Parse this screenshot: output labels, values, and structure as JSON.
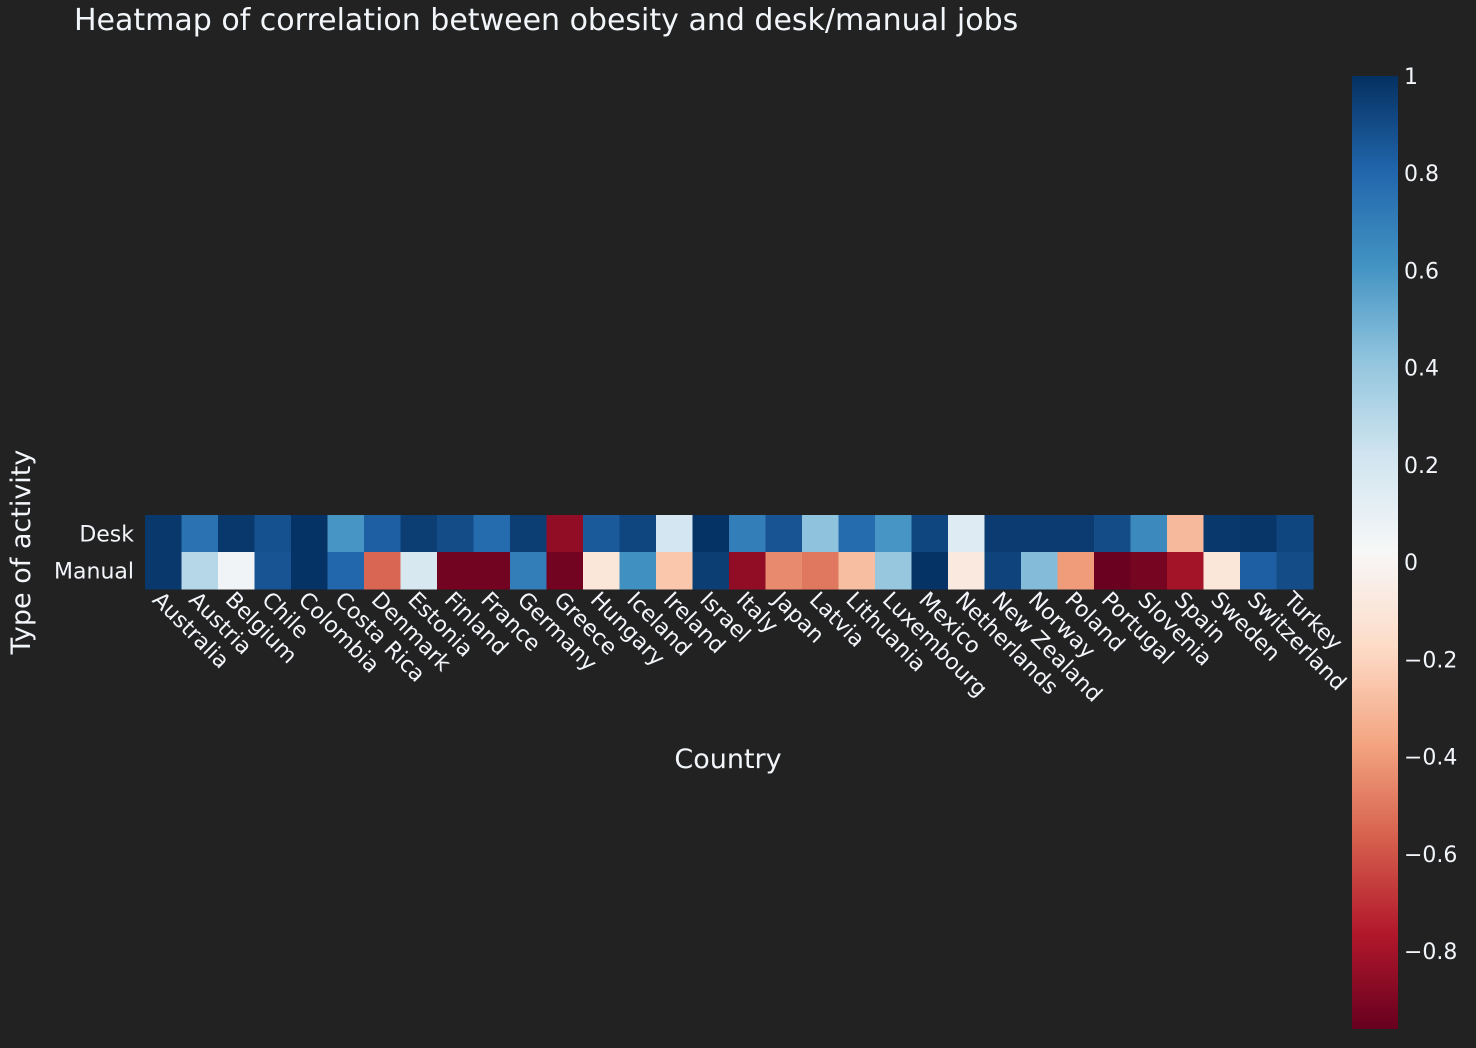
{
  "chart_data": {
    "type": "heatmap",
    "title": "Heatmap of correlation between obesity and desk/manual jobs",
    "xlabel": "Country",
    "ylabel": "Type of activity",
    "x": [
      "Australia",
      "Austria",
      "Belgium",
      "Chile",
      "Colombia",
      "Costa Rica",
      "Denmark",
      "Estonia",
      "Finland",
      "France",
      "Germany",
      "Greece",
      "Hungary",
      "Iceland",
      "Ireland",
      "Israel",
      "Italy",
      "Japan",
      "Latvia",
      "Lithuania",
      "Luxembourg",
      "Mexico",
      "Netherlands",
      "New Zealand",
      "Norway",
      "Poland",
      "Portugal",
      "Slovenia",
      "Spain",
      "Sweden",
      "Switzerland",
      "Turkey"
    ],
    "y": [
      "Desk",
      "Manual"
    ],
    "z": [
      [
        0.97,
        0.75,
        0.97,
        0.88,
        0.99,
        0.6,
        0.83,
        0.95,
        0.9,
        0.78,
        0.95,
        -0.85,
        0.85,
        0.92,
        0.2,
        0.99,
        0.7,
        0.87,
        0.42,
        0.78,
        0.6,
        0.92,
        0.15,
        0.96,
        0.96,
        0.96,
        0.9,
        0.65,
        -0.3,
        0.97,
        0.98,
        0.92
      ],
      [
        0.97,
        0.3,
        0.05,
        0.87,
        0.99,
        0.8,
        -0.55,
        0.18,
        -0.93,
        -0.93,
        0.7,
        -0.93,
        -0.1,
        0.62,
        -0.25,
        0.95,
        -0.85,
        -0.45,
        -0.5,
        -0.28,
        0.4,
        0.99,
        -0.08,
        0.93,
        0.45,
        -0.4,
        -0.95,
        -0.92,
        -0.8,
        -0.1,
        0.83,
        0.9
      ]
    ],
    "zmin": -0.96,
    "zmax": 1,
    "colorbar_ticks": [
      "1",
      "0.8",
      "0.6",
      "0.4",
      "0.2",
      "0",
      "−0.2",
      "−0.4",
      "−0.6",
      "−0.8"
    ],
    "colorbar_tick_values": [
      1,
      0.8,
      0.6,
      0.4,
      0.2,
      0,
      -0.2,
      -0.4,
      -0.6,
      -0.8
    ],
    "colorscale": "RdBu",
    "background": "#222222"
  }
}
